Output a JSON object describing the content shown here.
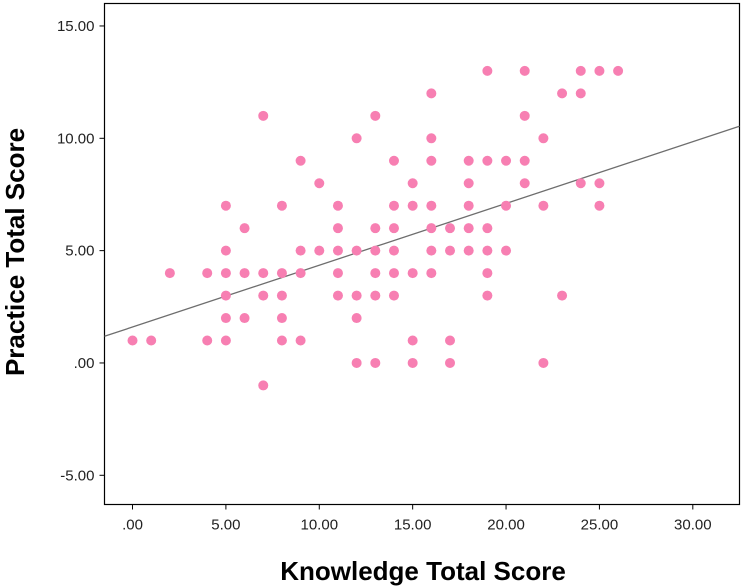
{
  "chart_data": {
    "type": "scatter",
    "xlabel": "Knowledge Total Score",
    "ylabel": "Practice Total Score",
    "xlim": [
      -1.5,
      32.5
    ],
    "ylim": [
      -6.3,
      16.0
    ],
    "x_ticks": [
      0,
      5,
      10,
      15,
      20,
      25,
      30
    ],
    "x_tick_labels": [
      ".00",
      "5.00",
      "10.00",
      "15.00",
      "20.00",
      "25.00",
      "30.00"
    ],
    "y_ticks": [
      15,
      10,
      5,
      0,
      -5
    ],
    "y_tick_labels": [
      "15.00",
      "10.00",
      "5.00",
      ".00",
      "-5.00"
    ],
    "grid": false,
    "point_color": "#f77fb2",
    "line_color": "#6e6e6e",
    "fit_line": {
      "intercept": 1.6,
      "slope": 0.275
    },
    "points": [
      [
        0,
        1
      ],
      [
        1,
        1
      ],
      [
        2,
        4
      ],
      [
        4,
        4
      ],
      [
        4,
        1
      ],
      [
        5,
        7
      ],
      [
        5,
        5
      ],
      [
        5,
        4
      ],
      [
        5,
        3
      ],
      [
        5,
        2
      ],
      [
        5,
        1
      ],
      [
        6,
        6
      ],
      [
        6,
        4
      ],
      [
        6,
        2
      ],
      [
        7,
        11
      ],
      [
        7,
        4
      ],
      [
        7,
        3
      ],
      [
        7,
        -1
      ],
      [
        8,
        7
      ],
      [
        8,
        4
      ],
      [
        8,
        3
      ],
      [
        8,
        2
      ],
      [
        8,
        1
      ],
      [
        9,
        9
      ],
      [
        9,
        5
      ],
      [
        9,
        4
      ],
      [
        9,
        1
      ],
      [
        10,
        8
      ],
      [
        10,
        5
      ],
      [
        11,
        7
      ],
      [
        11,
        6
      ],
      [
        11,
        5
      ],
      [
        11,
        4
      ],
      [
        11,
        3
      ],
      [
        12,
        10
      ],
      [
        12,
        5
      ],
      [
        12,
        3
      ],
      [
        12,
        2
      ],
      [
        12,
        0
      ],
      [
        13,
        11
      ],
      [
        13,
        6
      ],
      [
        13,
        5
      ],
      [
        13,
        4
      ],
      [
        13,
        3
      ],
      [
        13,
        0
      ],
      [
        14,
        9
      ],
      [
        14,
        7
      ],
      [
        14,
        6
      ],
      [
        14,
        5
      ],
      [
        14,
        4
      ],
      [
        14,
        3
      ],
      [
        15,
        8
      ],
      [
        15,
        7
      ],
      [
        15,
        4
      ],
      [
        15,
        1
      ],
      [
        15,
        0
      ],
      [
        16,
        12
      ],
      [
        16,
        10
      ],
      [
        16,
        9
      ],
      [
        16,
        7
      ],
      [
        16,
        6
      ],
      [
        16,
        5
      ],
      [
        16,
        4
      ],
      [
        17,
        6
      ],
      [
        17,
        5
      ],
      [
        17,
        1
      ],
      [
        17,
        0
      ],
      [
        18,
        9
      ],
      [
        18,
        8
      ],
      [
        18,
        7
      ],
      [
        18,
        6
      ],
      [
        18,
        5
      ],
      [
        19,
        13
      ],
      [
        19,
        9
      ],
      [
        19,
        6
      ],
      [
        19,
        5
      ],
      [
        19,
        4
      ],
      [
        19,
        3
      ],
      [
        20,
        9
      ],
      [
        20,
        7
      ],
      [
        20,
        5
      ],
      [
        21,
        13
      ],
      [
        21,
        11
      ],
      [
        21,
        9
      ],
      [
        21,
        8
      ],
      [
        22,
        10
      ],
      [
        22,
        7
      ],
      [
        22,
        0
      ],
      [
        23,
        12
      ],
      [
        23,
        3
      ],
      [
        24,
        13
      ],
      [
        24,
        12
      ],
      [
        24,
        8
      ],
      [
        25,
        13
      ],
      [
        25,
        8
      ],
      [
        25,
        7
      ],
      [
        26,
        13
      ]
    ]
  }
}
